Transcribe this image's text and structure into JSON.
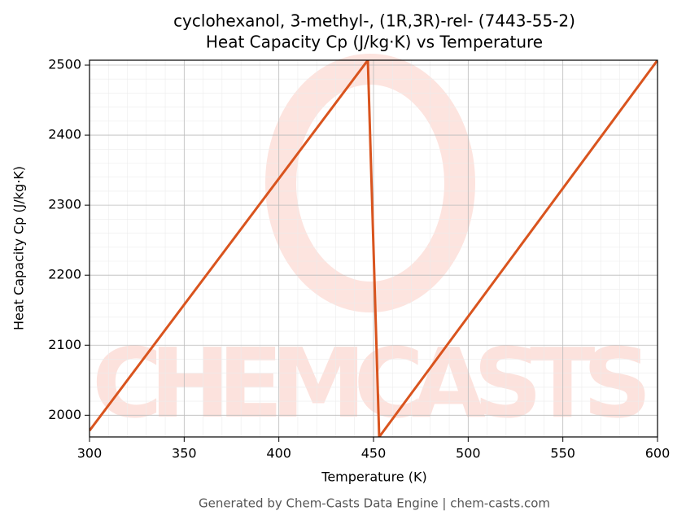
{
  "chart_data": {
    "type": "line",
    "title": "cyclohexanol, 3-methyl-, (1R,3R)-rel- (7443-55-2)",
    "subtitle": "Heat Capacity Cp (J/kg·K) vs Temperature",
    "x_label": "Temperature (K)",
    "y_label": "Heat Capacity Cp (J/kg·K)",
    "footer": "Generated by Chem-Casts Data Engine | chem-casts.com",
    "watermark": "CHEMCASTS",
    "x": [
      300,
      447,
      453,
      600
    ],
    "series": [
      {
        "name": "Cp",
        "color": "#d9541e",
        "values": [
          1978,
          2507,
          1969,
          2507
        ]
      }
    ],
    "xlim": [
      300,
      600
    ],
    "xticks": [
      300,
      350,
      400,
      450,
      500,
      550,
      600
    ],
    "ylim": [
      1969,
      2507
    ],
    "yticks": [
      2000,
      2100,
      2200,
      2300,
      2400,
      2500
    ],
    "grid": true
  }
}
